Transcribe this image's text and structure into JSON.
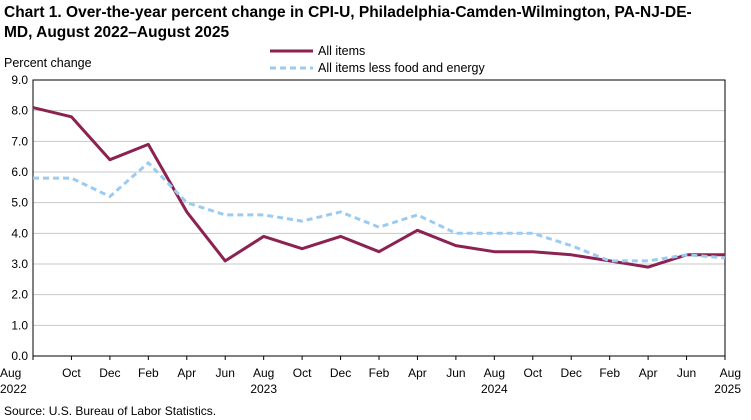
{
  "chart_data": {
    "type": "line",
    "title_line1": "Chart 1. Over-the-year percent change in CPI-U, Philadelphia-Camden-Wilmington,  PA-NJ-DE-",
    "title_line2": "MD, August 2022–August  2025",
    "ylabel": "Percent change",
    "ylim": [
      0,
      9
    ],
    "yticks": [
      "0.0",
      "1.0",
      "2.0",
      "3.0",
      "4.0",
      "5.0",
      "6.0",
      "7.0",
      "8.0",
      "9.0"
    ],
    "grid": "horizontal",
    "legend_position": "top-center",
    "x": [
      "Aug 2022",
      "Oct 2022",
      "Dec 2022",
      "Feb 2023",
      "Apr 2023",
      "Jun 2023",
      "Aug 2023",
      "Oct 2023",
      "Dec 2023",
      "Feb 2024",
      "Apr 2024",
      "Jun 2024",
      "Aug 2024",
      "Oct 2024",
      "Dec 2024",
      "Feb 2025",
      "Apr 2025",
      "Jun 2025",
      "Aug 2025"
    ],
    "xtick_labels": [
      {
        "month": "Aug",
        "year": "2022"
      },
      {
        "month": "Oct",
        "year": ""
      },
      {
        "month": "Dec",
        "year": ""
      },
      {
        "month": "Feb",
        "year": ""
      },
      {
        "month": "Apr",
        "year": ""
      },
      {
        "month": "Jun",
        "year": ""
      },
      {
        "month": "Aug",
        "year": "2023"
      },
      {
        "month": "Oct",
        "year": ""
      },
      {
        "month": "Dec",
        "year": ""
      },
      {
        "month": "Feb",
        "year": ""
      },
      {
        "month": "Apr",
        "year": ""
      },
      {
        "month": "Jun",
        "year": ""
      },
      {
        "month": "Aug",
        "year": "2024"
      },
      {
        "month": "Oct",
        "year": ""
      },
      {
        "month": "Dec",
        "year": ""
      },
      {
        "month": "Feb",
        "year": ""
      },
      {
        "month": "Apr",
        "year": ""
      },
      {
        "month": "Jun",
        "year": ""
      },
      {
        "month": "Aug",
        "year": "2025"
      }
    ],
    "series": [
      {
        "name": "All items",
        "color": "#8b2252",
        "style": "solid",
        "values": [
          8.1,
          7.8,
          6.4,
          6.9,
          4.7,
          3.1,
          3.9,
          3.5,
          3.9,
          3.4,
          4.1,
          3.6,
          3.4,
          3.4,
          3.3,
          3.1,
          2.9,
          3.3,
          3.3
        ]
      },
      {
        "name": "All items less food and energy",
        "color": "#9ccbf2",
        "style": "dashed",
        "values": [
          5.8,
          5.8,
          5.2,
          6.3,
          5.0,
          4.6,
          4.6,
          4.4,
          4.7,
          4.2,
          4.6,
          4.0,
          4.0,
          4.0,
          3.6,
          3.1,
          3.1,
          3.3,
          3.2
        ]
      }
    ],
    "source": "Source: U.S. Bureau  of Labor Statistics."
  }
}
